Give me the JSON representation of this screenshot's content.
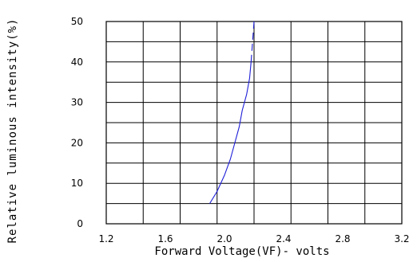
{
  "chart_data": {
    "type": "line",
    "title": "",
    "xlabel": "Forward Voltage(VF)- volts",
    "ylabel": "Relative luminous intensity(%)",
    "xlim": [
      1.2,
      3.2
    ],
    "ylim": [
      0,
      50
    ],
    "x_ticks": [
      "1.2",
      "1.6",
      "2.0",
      "2.4",
      "2.8",
      "3.2"
    ],
    "y_ticks": [
      "0",
      "10",
      "20",
      "30",
      "40",
      "50"
    ],
    "grid": true,
    "legend": "none",
    "series": [
      {
        "color": "#1f1fd8",
        "line_style": "solid-then-dashed",
        "x": [
          1.9,
          1.95,
          2.0,
          2.04,
          2.07,
          2.1,
          2.12,
          2.15,
          2.17,
          2.18,
          2.19,
          2.2
        ],
        "y": [
          5,
          8,
          12,
          16,
          20,
          24,
          28,
          32,
          36,
          40,
          45,
          50
        ]
      }
    ]
  }
}
